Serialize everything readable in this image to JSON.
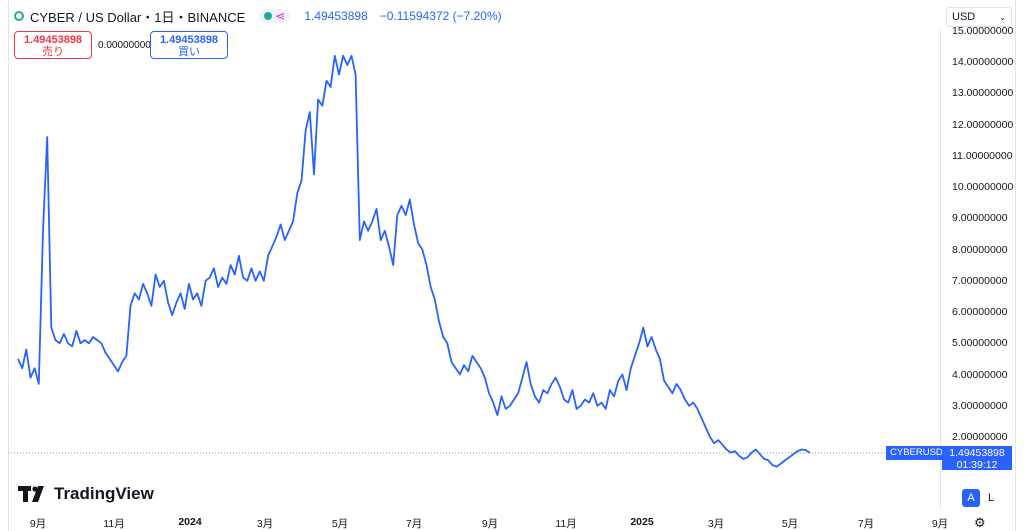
{
  "header": {
    "title": "CYBER / US Dollar・1日・BINANCE",
    "price": "1.49453898",
    "change": "−0.11594372 (−7.20%)"
  },
  "trade": {
    "sell_price": "1.49453898",
    "sell_label": "売り",
    "spread": "0.00000000",
    "buy_price": "1.49453898",
    "buy_label": "買い"
  },
  "currency_select": {
    "value": "USD"
  },
  "last_price": {
    "symbol": "CYBERUSD",
    "value": "1.49453898",
    "countdown": "01:39:12"
  },
  "brand": {
    "name": "TradingView"
  },
  "scale_buttons": {
    "auto": "A",
    "log": "L"
  },
  "colors": {
    "line": "#2962ff",
    "accent": "#2962ff",
    "sell": "#f23645"
  },
  "chart_data": {
    "type": "line",
    "y_ticks": [
      "14.00000000",
      "13.00000000",
      "12.00000000",
      "11.00000000",
      "10.00000000",
      "9.00000000",
      "8.00000000",
      "7.00000000",
      "6.00000000",
      "5.00000000",
      "4.00000000",
      "3.00000000",
      "2.00000000"
    ],
    "y_top_partial": "15.00000000",
    "x_ticks": [
      "9月",
      "11月",
      "2024",
      "3月",
      "5月",
      "7月",
      "9月",
      "11月",
      "2025",
      "3月",
      "5月",
      "7月",
      "9月"
    ],
    "x_bold_ticks": [
      "2024",
      "2025"
    ],
    "ylim": [
      1,
      14.6
    ],
    "grid": false,
    "series": [
      {
        "values": [
          4.5,
          4.2,
          4.8,
          3.9,
          4.2,
          3.7,
          8.6,
          11.6,
          5.5,
          5.1,
          5.0,
          5.3,
          5.0,
          4.9,
          5.4,
          5.0,
          5.1,
          5.0,
          5.2,
          5.1,
          5.0,
          4.7,
          4.5,
          4.3,
          4.1,
          4.4,
          4.6,
          6.2,
          6.6,
          6.4,
          6.9,
          6.6,
          6.2,
          7.2,
          6.8,
          7.0,
          6.3,
          5.9,
          6.3,
          6.6,
          6.1,
          6.9,
          6.4,
          6.6,
          6.2,
          7.0,
          7.1,
          7.4,
          6.8,
          7.1,
          6.9,
          7.5,
          7.2,
          7.8,
          7.1,
          7.0,
          7.4,
          7.0,
          7.3,
          7.0,
          7.8,
          8.1,
          8.4,
          8.8,
          8.3,
          8.6,
          8.9,
          9.8,
          10.2,
          11.8,
          12.4,
          10.4,
          12.8,
          12.6,
          13.4,
          13.2,
          14.2,
          13.6,
          14.2,
          13.9,
          14.2,
          13.6,
          8.3,
          8.9,
          8.6,
          8.9,
          9.3,
          8.3,
          8.6,
          8.1,
          7.5,
          9.1,
          9.4,
          9.1,
          9.6,
          8.8,
          8.2,
          8.0,
          7.5,
          6.8,
          6.4,
          5.7,
          5.2,
          5.0,
          4.4,
          4.2,
          4.0,
          4.3,
          4.1,
          4.6,
          4.4,
          4.2,
          3.9,
          3.4,
          3.1,
          2.7,
          3.3,
          2.9,
          3.0,
          3.2,
          3.4,
          3.9,
          4.4,
          3.7,
          3.3,
          3.1,
          3.5,
          3.4,
          3.7,
          3.9,
          3.6,
          3.2,
          3.1,
          3.5,
          2.9,
          3.0,
          3.2,
          3.1,
          3.4,
          3.0,
          3.1,
          2.9,
          3.5,
          3.3,
          3.8,
          4.0,
          3.5,
          4.2,
          4.6,
          5.0,
          5.5,
          4.9,
          5.2,
          4.8,
          4.5,
          3.8,
          3.6,
          3.4,
          3.7,
          3.5,
          3.2,
          3.0,
          3.1,
          2.9,
          2.6,
          2.3,
          2.0,
          1.8,
          1.9,
          1.75,
          1.6,
          1.5,
          1.55,
          1.4,
          1.3,
          1.35,
          1.5,
          1.6,
          1.45,
          1.3,
          1.25,
          1.1,
          1.05,
          1.15,
          1.25,
          1.35,
          1.45,
          1.55,
          1.6,
          1.58,
          1.49
        ]
      }
    ]
  }
}
